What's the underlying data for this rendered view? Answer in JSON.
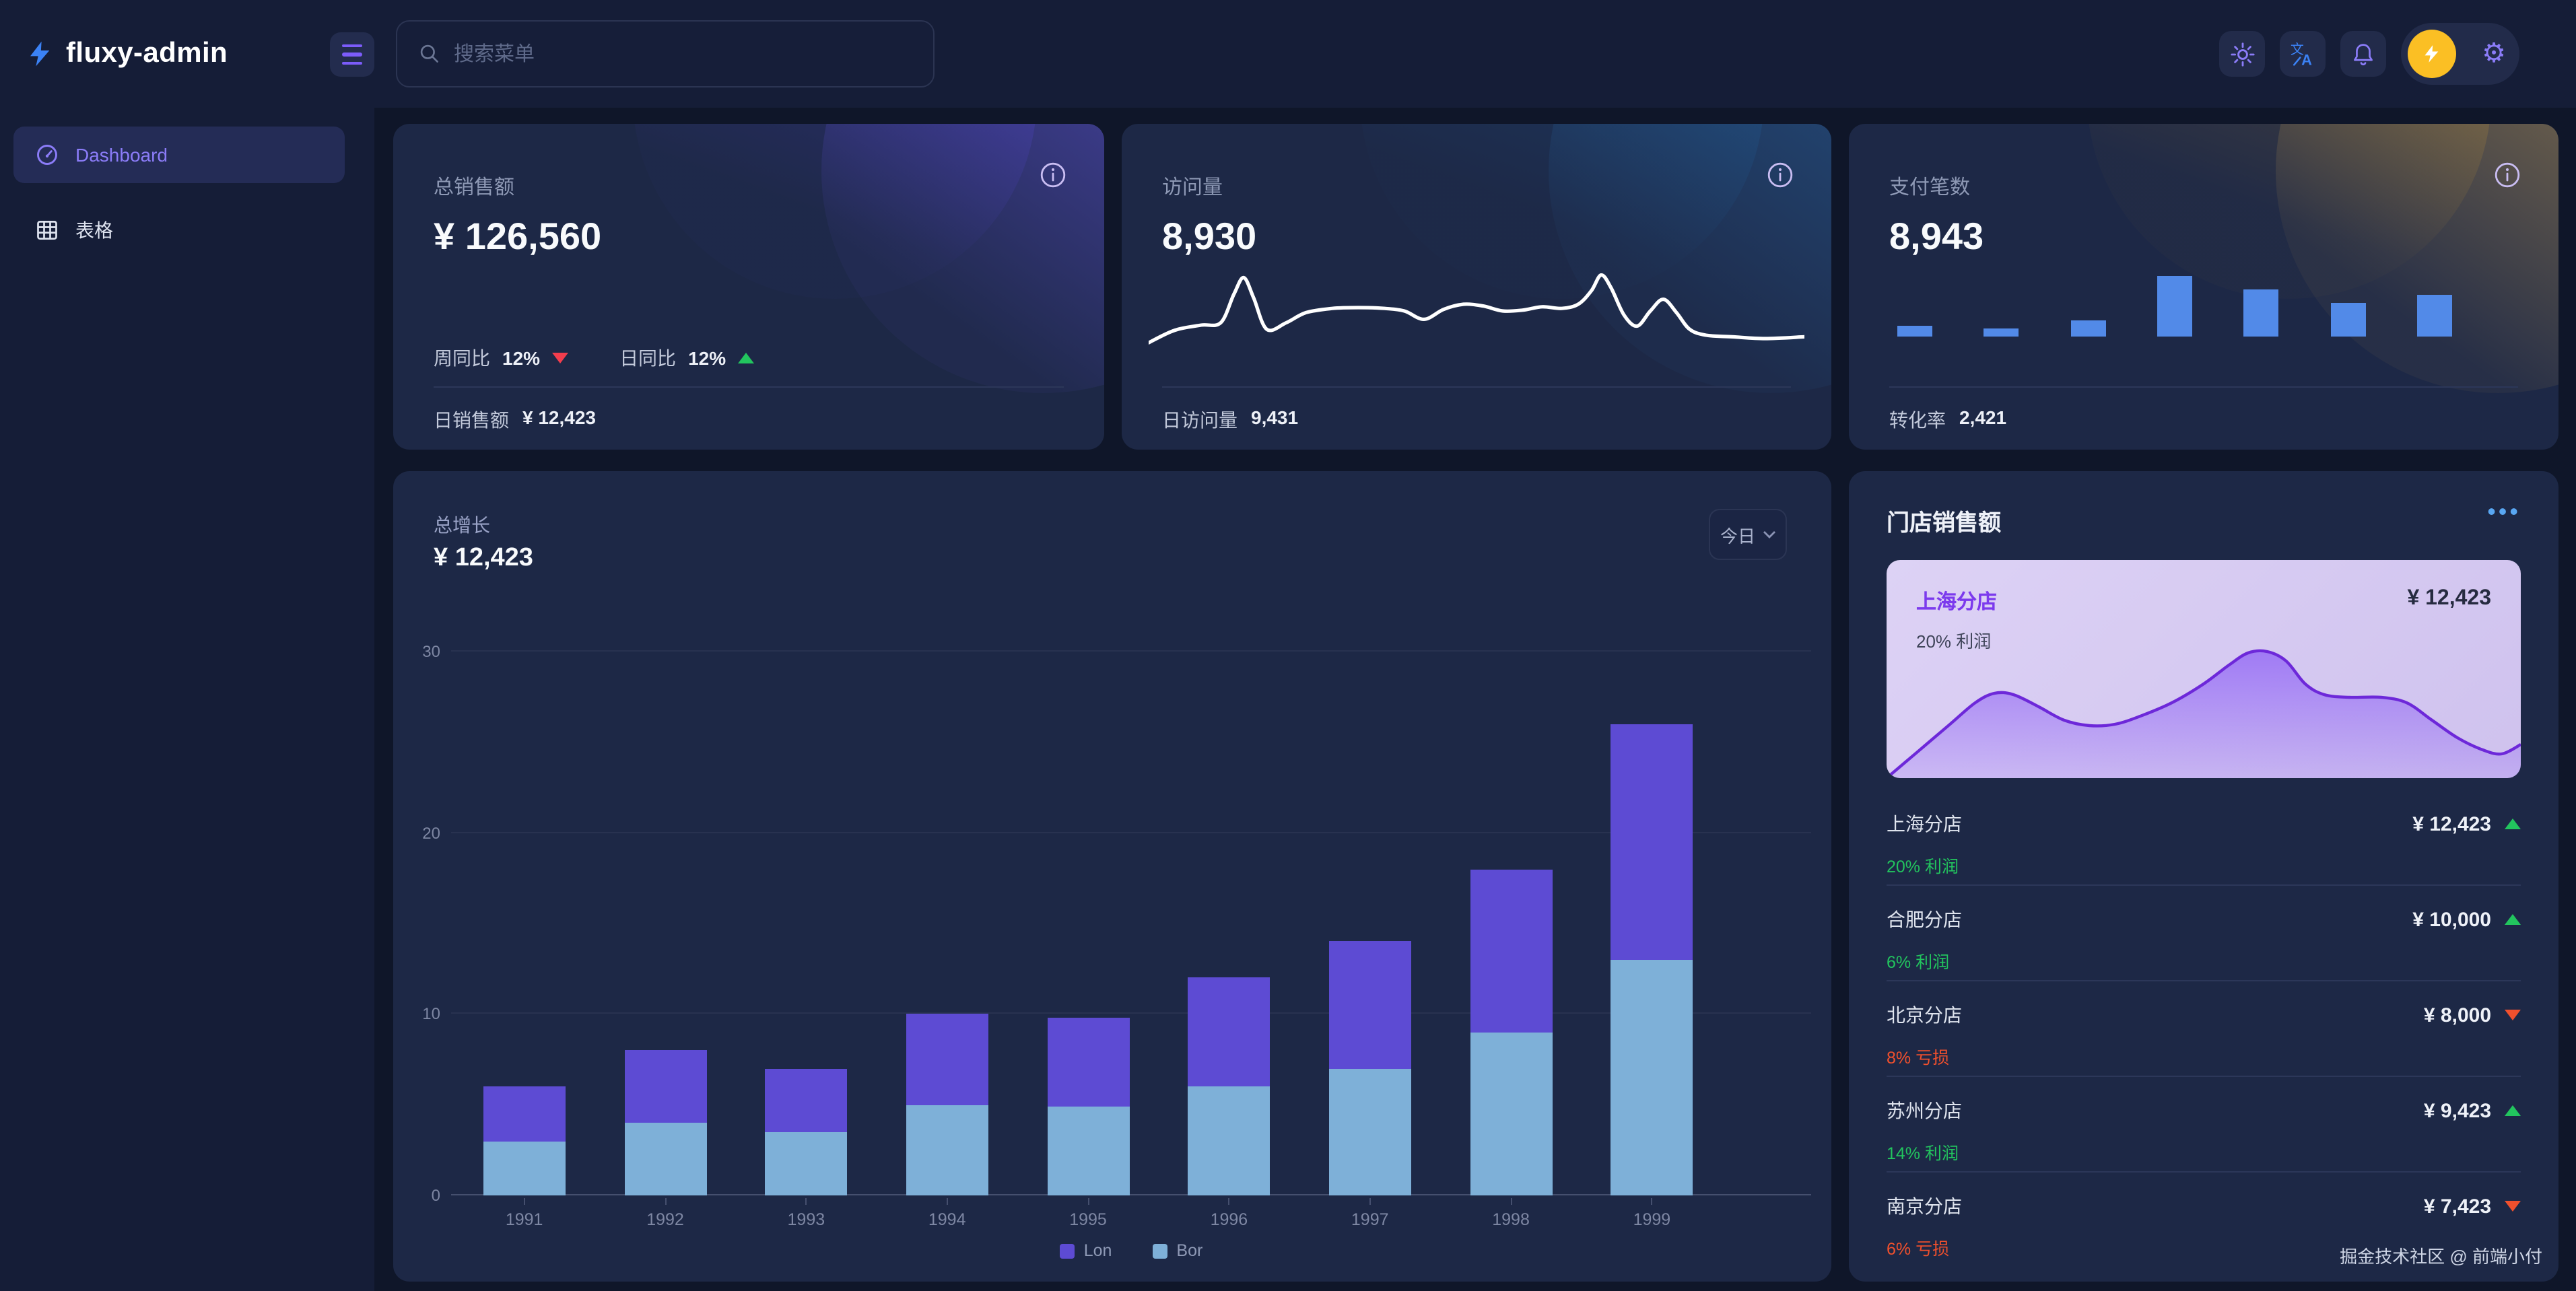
{
  "brand": {
    "name": "fluxy-admin"
  },
  "header": {
    "search_placeholder": "搜索菜单"
  },
  "sidebar": {
    "items": [
      {
        "label": "Dashboard"
      },
      {
        "label": "表格"
      }
    ]
  },
  "stats": [
    {
      "title": "总销售额",
      "value": "¥ 126,560",
      "metrics": [
        {
          "label": "周同比",
          "value": "12%",
          "trend": "down"
        },
        {
          "label": "日同比",
          "value": "12%",
          "trend": "up"
        }
      ],
      "footer_label": "日销售额",
      "footer_value": "¥ 12,423"
    },
    {
      "title": "访问量",
      "value": "8,930",
      "footer_label": "日访问量",
      "footer_value": "9,431"
    },
    {
      "title": "支付笔数",
      "value": "8,943",
      "footer_label": "转化率",
      "footer_value": "2,421"
    }
  ],
  "main_chart": {
    "title": "总增长",
    "value": "¥ 12,423",
    "range_select": "今日"
  },
  "store_panel": {
    "title": "门店销售额",
    "featured": {
      "name": "上海分店",
      "value": "¥ 12,423",
      "profit": "20% 利润"
    },
    "rows": [
      {
        "name": "上海分店",
        "value": "¥ 12,423",
        "trend": "up",
        "sub": "20% 利润",
        "sub_type": "profit"
      },
      {
        "name": "合肥分店",
        "value": "¥ 10,000",
        "trend": "up",
        "sub": "6% 利润",
        "sub_type": "profit"
      },
      {
        "name": "北京分店",
        "value": "¥ 8,000",
        "trend": "down",
        "sub": "8% 亏损",
        "sub_type": "loss"
      },
      {
        "name": "苏州分店",
        "value": "¥ 9,423",
        "trend": "up",
        "sub": "14% 利润",
        "sub_type": "profit"
      },
      {
        "name": "南京分店",
        "value": "¥ 7,423",
        "trend": "down",
        "sub": "6% 亏损",
        "sub_type": "loss"
      }
    ]
  },
  "footer": {
    "credit": "掘金技术社区 @ 前端小付"
  },
  "colors": {
    "page_bg": "#0f1629",
    "panel_bg": "#151d37",
    "card_bg": "#1d2846",
    "accent": "#7c6af8",
    "blue": "#3b82f6",
    "green": "#22c55e",
    "red": "#f0502d",
    "stat_red": "#f23d4d",
    "avatar_yellow": "#fbbf24",
    "mini_bar_blue": "#528ae8"
  },
  "chart_data": [
    {
      "id": "growth_stacked_bar",
      "type": "bar",
      "stacked": true,
      "title": "总增长",
      "categories": [
        "1991",
        "1992",
        "1993",
        "1994",
        "1995",
        "1996",
        "1997",
        "1998",
        "1999"
      ],
      "series": [
        {
          "name": "Lon",
          "color": "#5d4bd3",
          "values": [
            3,
            4,
            3.5,
            5,
            4.9,
            6,
            7,
            9,
            13
          ]
        },
        {
          "name": "Bor",
          "color": "#7eb0d8",
          "values": [
            3,
            4,
            3.5,
            5,
            4.9,
            6,
            7,
            9,
            13
          ]
        }
      ],
      "ylim": [
        0,
        30
      ],
      "yticks": [
        0,
        10,
        20,
        30
      ],
      "grid": true,
      "legend_position": "bottom"
    },
    {
      "id": "visits_sparkline",
      "type": "line",
      "color": "#ffffff",
      "points": [
        [
          0,
          88
        ],
        [
          4,
          73
        ],
        [
          8,
          67
        ],
        [
          11,
          64
        ],
        [
          13,
          30
        ],
        [
          14.5,
          10
        ],
        [
          16,
          34
        ],
        [
          18,
          72
        ],
        [
          21,
          64
        ],
        [
          24,
          52
        ],
        [
          28,
          47
        ],
        [
          32,
          46
        ],
        [
          36,
          47
        ],
        [
          39,
          50
        ],
        [
          42,
          60
        ],
        [
          45,
          48
        ],
        [
          48,
          42
        ],
        [
          51,
          44
        ],
        [
          54,
          50
        ],
        [
          57,
          49
        ],
        [
          60,
          45
        ],
        [
          63,
          47
        ],
        [
          65.5,
          42
        ],
        [
          67.5,
          26
        ],
        [
          69,
          7
        ],
        [
          70.5,
          22
        ],
        [
          72.5,
          55
        ],
        [
          74.5,
          68
        ],
        [
          76.5,
          50
        ],
        [
          78.5,
          36
        ],
        [
          80.5,
          52
        ],
        [
          82.5,
          72
        ],
        [
          85,
          79
        ],
        [
          89,
          81
        ],
        [
          94,
          83
        ],
        [
          100,
          81
        ]
      ]
    },
    {
      "id": "payments_minibar",
      "type": "bar",
      "color": "#528ae8",
      "values": [
        18,
        14,
        26,
        100,
        78,
        56,
        69
      ]
    },
    {
      "id": "store_area",
      "type": "area",
      "line_color": "#6d28d9",
      "fill_color": "#8b5cf6",
      "points": [
        [
          0,
          100
        ],
        [
          5,
          80
        ],
        [
          10,
          60
        ],
        [
          14,
          44
        ],
        [
          17,
          37
        ],
        [
          20,
          38
        ],
        [
          24,
          47
        ],
        [
          28,
          57
        ],
        [
          32,
          61
        ],
        [
          36,
          60
        ],
        [
          40,
          54
        ],
        [
          45,
          44
        ],
        [
          50,
          30
        ],
        [
          54,
          16
        ],
        [
          57,
          7
        ],
        [
          60,
          6
        ],
        [
          63,
          13
        ],
        [
          66,
          30
        ],
        [
          69,
          38
        ],
        [
          73,
          40
        ],
        [
          78,
          40
        ],
        [
          82,
          44
        ],
        [
          86,
          57
        ],
        [
          90,
          70
        ],
        [
          94,
          79
        ],
        [
          97,
          82
        ],
        [
          100,
          75
        ]
      ]
    }
  ]
}
